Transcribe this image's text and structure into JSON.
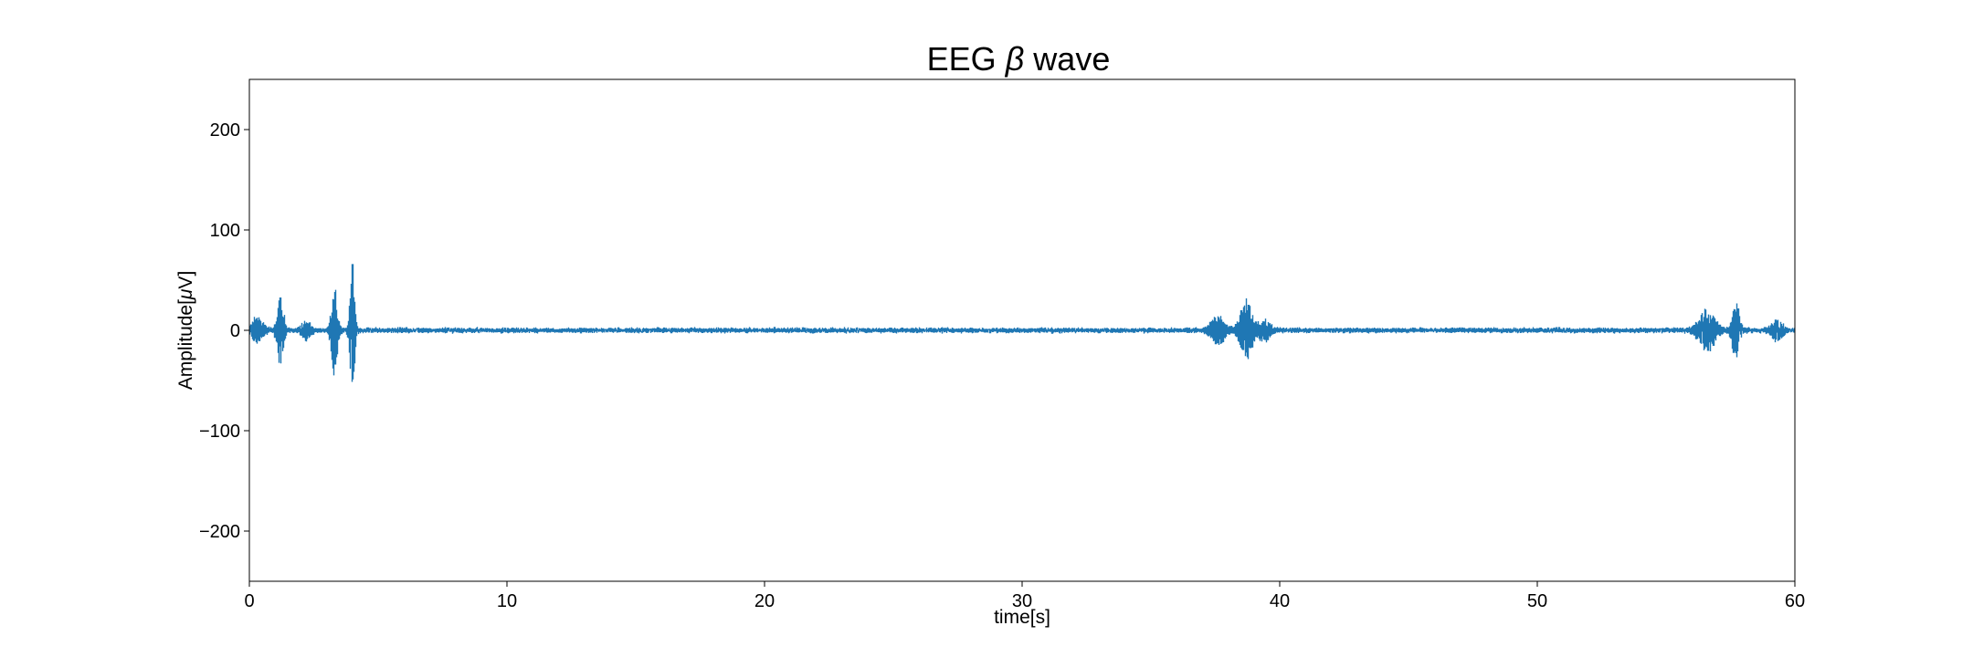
{
  "chart_data": {
    "type": "line",
    "title_main": "EEG",
    "title_symbol": "β",
    "title_suffix": "wave",
    "xlabel": "time[s]",
    "ylabel_prefix": "Amplitude[",
    "ylabel_symbol": "μ",
    "ylabel_suffix": "V]",
    "xlim": [
      0,
      60
    ],
    "ylim": [
      -250,
      250
    ],
    "xticks": [
      0,
      10,
      20,
      30,
      40,
      50,
      60
    ],
    "yticks": [
      -200,
      -100,
      0,
      100,
      200
    ],
    "ytick_labels": [
      "−200",
      "−100",
      "0",
      "100",
      "200"
    ],
    "grid": false,
    "series": [
      {
        "color": "#1f77b4",
        "sample_rate_hz": 200,
        "baseline_amplitude_uV": 2.5,
        "bursts": [
          {
            "t": 0.3,
            "width": 0.5,
            "amp": 12
          },
          {
            "t": 1.2,
            "width": 0.25,
            "amp": 40
          },
          {
            "t": 2.2,
            "width": 0.35,
            "amp": 10
          },
          {
            "t": 3.3,
            "width": 0.25,
            "amp": 48
          },
          {
            "t": 4.0,
            "width": 0.2,
            "amp": 66
          },
          {
            "t": 37.6,
            "width": 0.6,
            "amp": 14
          },
          {
            "t": 38.7,
            "width": 0.5,
            "amp": 30
          },
          {
            "t": 39.4,
            "width": 0.5,
            "amp": 10
          },
          {
            "t": 56.6,
            "width": 0.7,
            "amp": 20
          },
          {
            "t": 57.7,
            "width": 0.3,
            "amp": 30
          },
          {
            "t": 59.3,
            "width": 0.5,
            "amp": 10
          }
        ]
      }
    ]
  }
}
